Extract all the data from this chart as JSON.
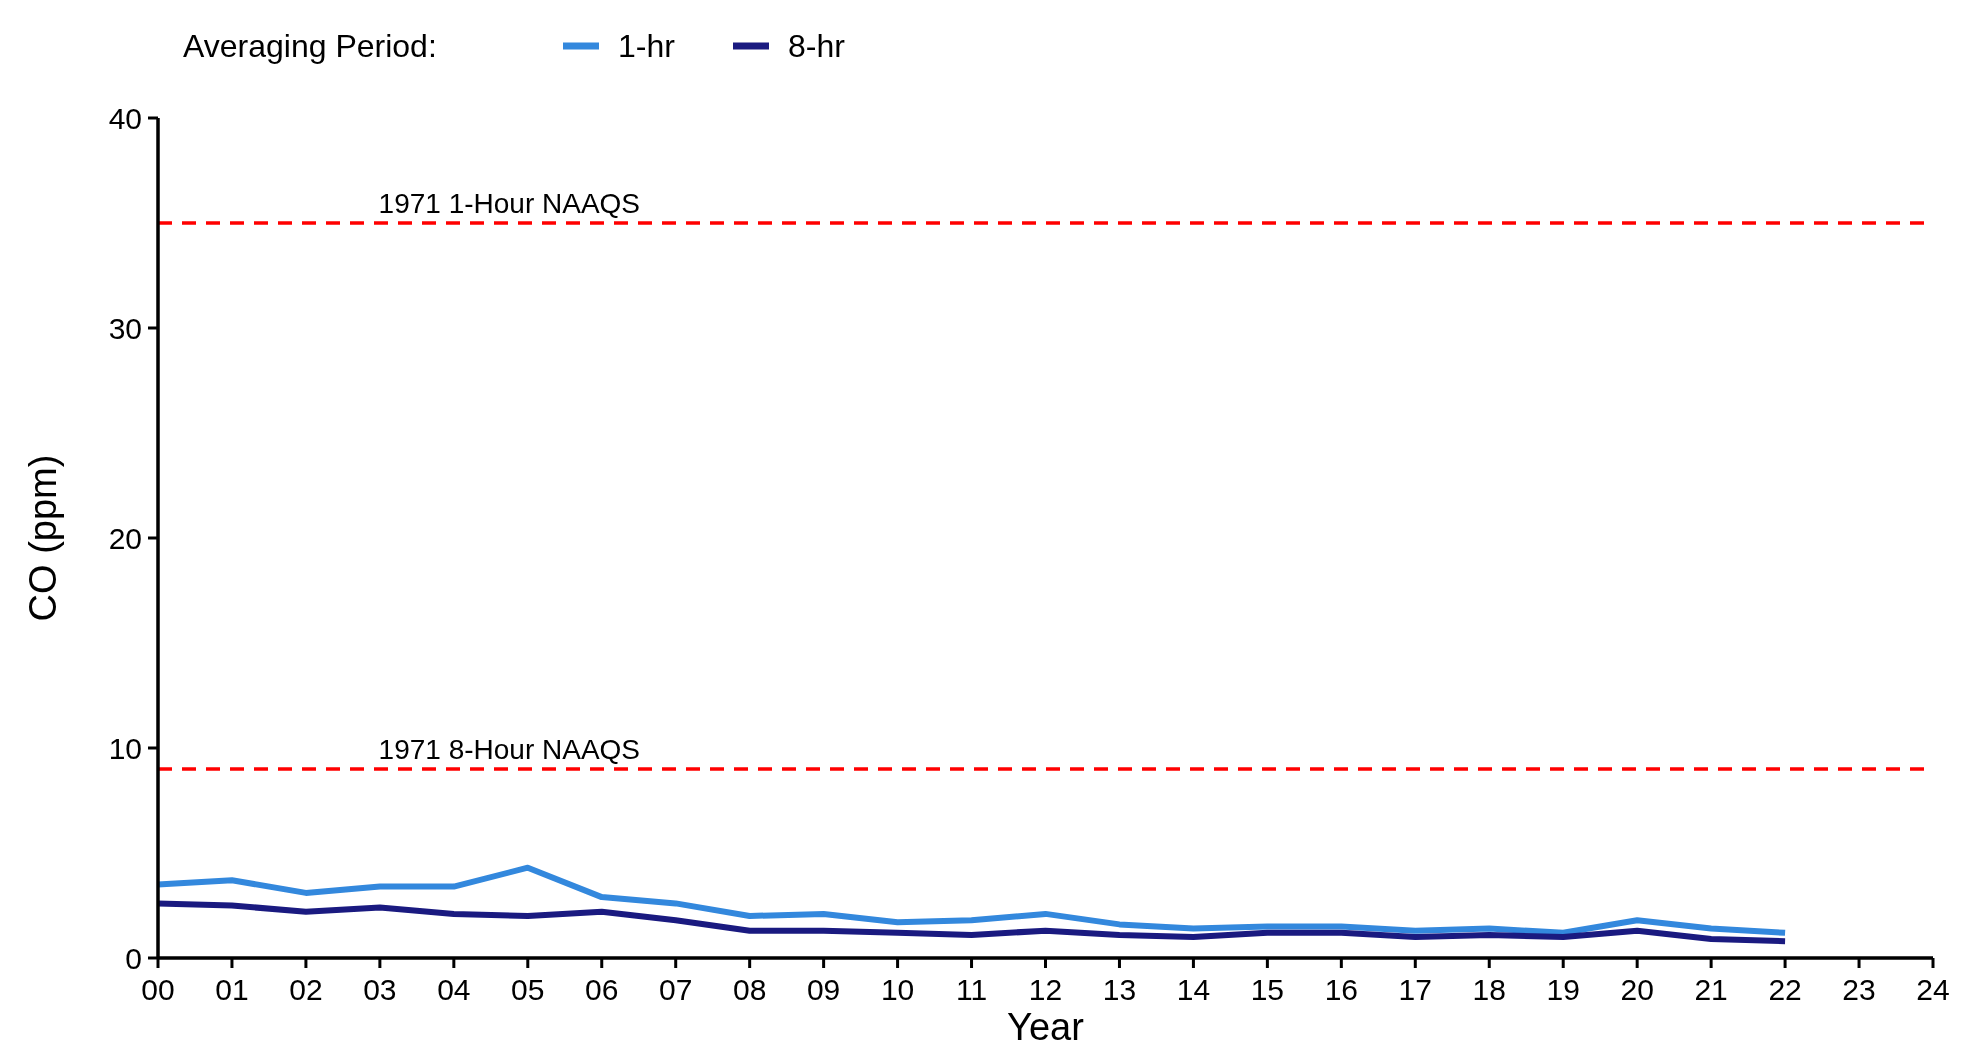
{
  "chart_data": {
    "type": "line",
    "xlabel": "Year",
    "ylabel": "CO (ppm)",
    "legend_title": "Averaging Period:",
    "legend": "top left",
    "grid": false,
    "line_style": "solid",
    "x": [
      0,
      1,
      2,
      3,
      4,
      5,
      6,
      7,
      8,
      9,
      10,
      11,
      12,
      13,
      14,
      15,
      16,
      17,
      18,
      19,
      20,
      21,
      22
    ],
    "xlim": [
      0,
      24
    ],
    "xticks": [
      {
        "value": 0,
        "label": "00"
      },
      {
        "value": 1,
        "label": "01"
      },
      {
        "value": 2,
        "label": "02"
      },
      {
        "value": 3,
        "label": "03"
      },
      {
        "value": 4,
        "label": "04"
      },
      {
        "value": 5,
        "label": "05"
      },
      {
        "value": 6,
        "label": "06"
      },
      {
        "value": 7,
        "label": "07"
      },
      {
        "value": 8,
        "label": "08"
      },
      {
        "value": 9,
        "label": "09"
      },
      10,
      11,
      12,
      13,
      14,
      15,
      16,
      17,
      18,
      19,
      20,
      21,
      22,
      23,
      24
    ],
    "ylim": [
      0,
      40
    ],
    "yticks": [
      0,
      10,
      20,
      30,
      40
    ],
    "series": [
      {
        "name": "1-hr",
        "color": "#3388dd",
        "values": [
          3.5,
          3.7,
          3.1,
          3.4,
          3.4,
          4.3,
          2.9,
          2.6,
          2.0,
          2.1,
          1.7,
          1.8,
          2.1,
          1.6,
          1.4,
          1.5,
          1.5,
          1.3,
          1.4,
          1.2,
          1.8,
          1.4,
          1.2
        ]
      },
      {
        "name": "8-hr",
        "color": "#1a1a80",
        "values": [
          2.6,
          2.5,
          2.2,
          2.4,
          2.1,
          2.0,
          2.2,
          1.8,
          1.3,
          1.3,
          1.2,
          1.1,
          1.3,
          1.1,
          1.0,
          1.2,
          1.2,
          1.0,
          1.1,
          1.0,
          1.3,
          0.9,
          0.8
        ]
      }
    ],
    "ref_lines": [
      {
        "axis": "y",
        "value": 35,
        "label": "1971 1-Hour NAAQS",
        "color": "#ff0000",
        "line_style": "dashed"
      },
      {
        "axis": "y",
        "value": 9,
        "label": "1971 8-Hour NAAQS",
        "color": "#ff0000",
        "line_style": "dashed"
      }
    ]
  }
}
